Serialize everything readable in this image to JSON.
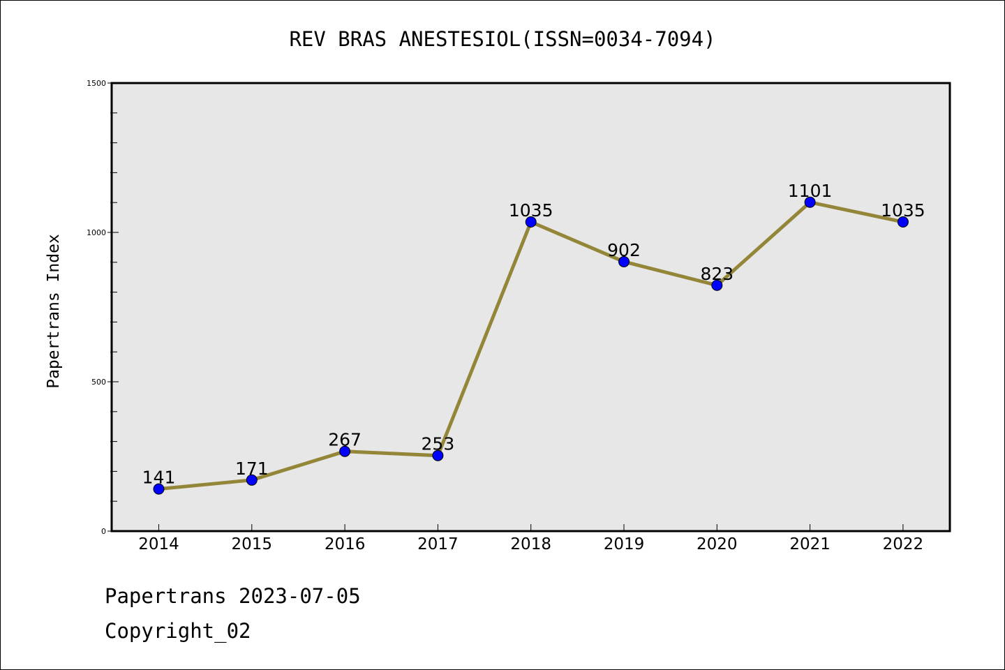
{
  "chart_data": {
    "type": "line",
    "title": "REV BRAS ANESTESIOL(ISSN=0034-7094)",
    "ylabel": "Papertrans Index",
    "xlabel": "",
    "categories": [
      "2014",
      "2015",
      "2016",
      "2017",
      "2018",
      "2019",
      "2020",
      "2021",
      "2022"
    ],
    "values": [
      141,
      171,
      267,
      253,
      1035,
      902,
      823,
      1101,
      1035
    ],
    "value_labels": [
      "141",
      "171",
      "267",
      "253",
      "1035",
      "902",
      "823",
      "1101",
      "1035"
    ],
    "ylim": [
      0,
      1500
    ],
    "yticks": [
      "0",
      "500",
      "1000",
      "1500"
    ],
    "ytick_values": [
      0,
      500,
      1000,
      1500
    ],
    "grid": false,
    "colors": {
      "line": "#948638",
      "marker": "#0000ff",
      "plot_background": "#e7e7e7"
    }
  },
  "footer": {
    "source_line": "Papertrans 2023-07-05",
    "copyright_line": "Copyright_02"
  }
}
